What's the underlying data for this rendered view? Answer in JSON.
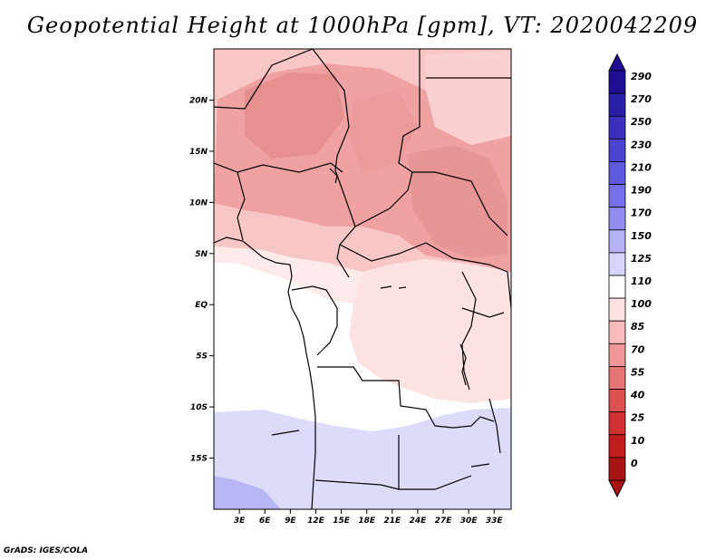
{
  "title": "Geopotential Height at 1000hPa [gpm], VT: 2020042209",
  "footer": "GrADS: IGES/COLA",
  "map": {
    "region": "Central Africa",
    "lat_range": [
      -20,
      25
    ],
    "lon_range": [
      0,
      35
    ],
    "lat_ticks": [
      {
        "value": 20,
        "label": "20N"
      },
      {
        "value": 15,
        "label": "15N"
      },
      {
        "value": 10,
        "label": "10N"
      },
      {
        "value": 5,
        "label": "5N"
      },
      {
        "value": 0,
        "label": "EQ"
      },
      {
        "value": -5,
        "label": "5S"
      },
      {
        "value": -10,
        "label": "10S"
      },
      {
        "value": -15,
        "label": "15S"
      }
    ],
    "lon_ticks": [
      {
        "value": 3,
        "label": "3E"
      },
      {
        "value": 6,
        "label": "6E"
      },
      {
        "value": 9,
        "label": "9E"
      },
      {
        "value": 12,
        "label": "12E"
      },
      {
        "value": 15,
        "label": "15E"
      },
      {
        "value": 18,
        "label": "18E"
      },
      {
        "value": 21,
        "label": "21E"
      },
      {
        "value": 24,
        "label": "24E"
      },
      {
        "value": 27,
        "label": "27E"
      },
      {
        "value": 30,
        "label": "30E"
      },
      {
        "value": 33,
        "label": "33E"
      }
    ]
  },
  "colorbar": {
    "levels": [
      "290",
      "270",
      "250",
      "230",
      "210",
      "190",
      "170",
      "150",
      "125",
      "110",
      "100",
      "85",
      "70",
      "55",
      "40",
      "25",
      "10",
      "0"
    ],
    "colors_top_to_bottom": [
      "#1e0e96",
      "#2a1fa8",
      "#3a30bd",
      "#4a44d0",
      "#5d5ade",
      "#7570ea",
      "#918cf2",
      "#b4b1f7",
      "#d6d5fb",
      "#ffffff",
      "#fde0e0",
      "#f8bcbc",
      "#f09898",
      "#e67474",
      "#dc5050",
      "#d03030",
      "#c21c1c",
      "#a81414"
    ]
  }
}
